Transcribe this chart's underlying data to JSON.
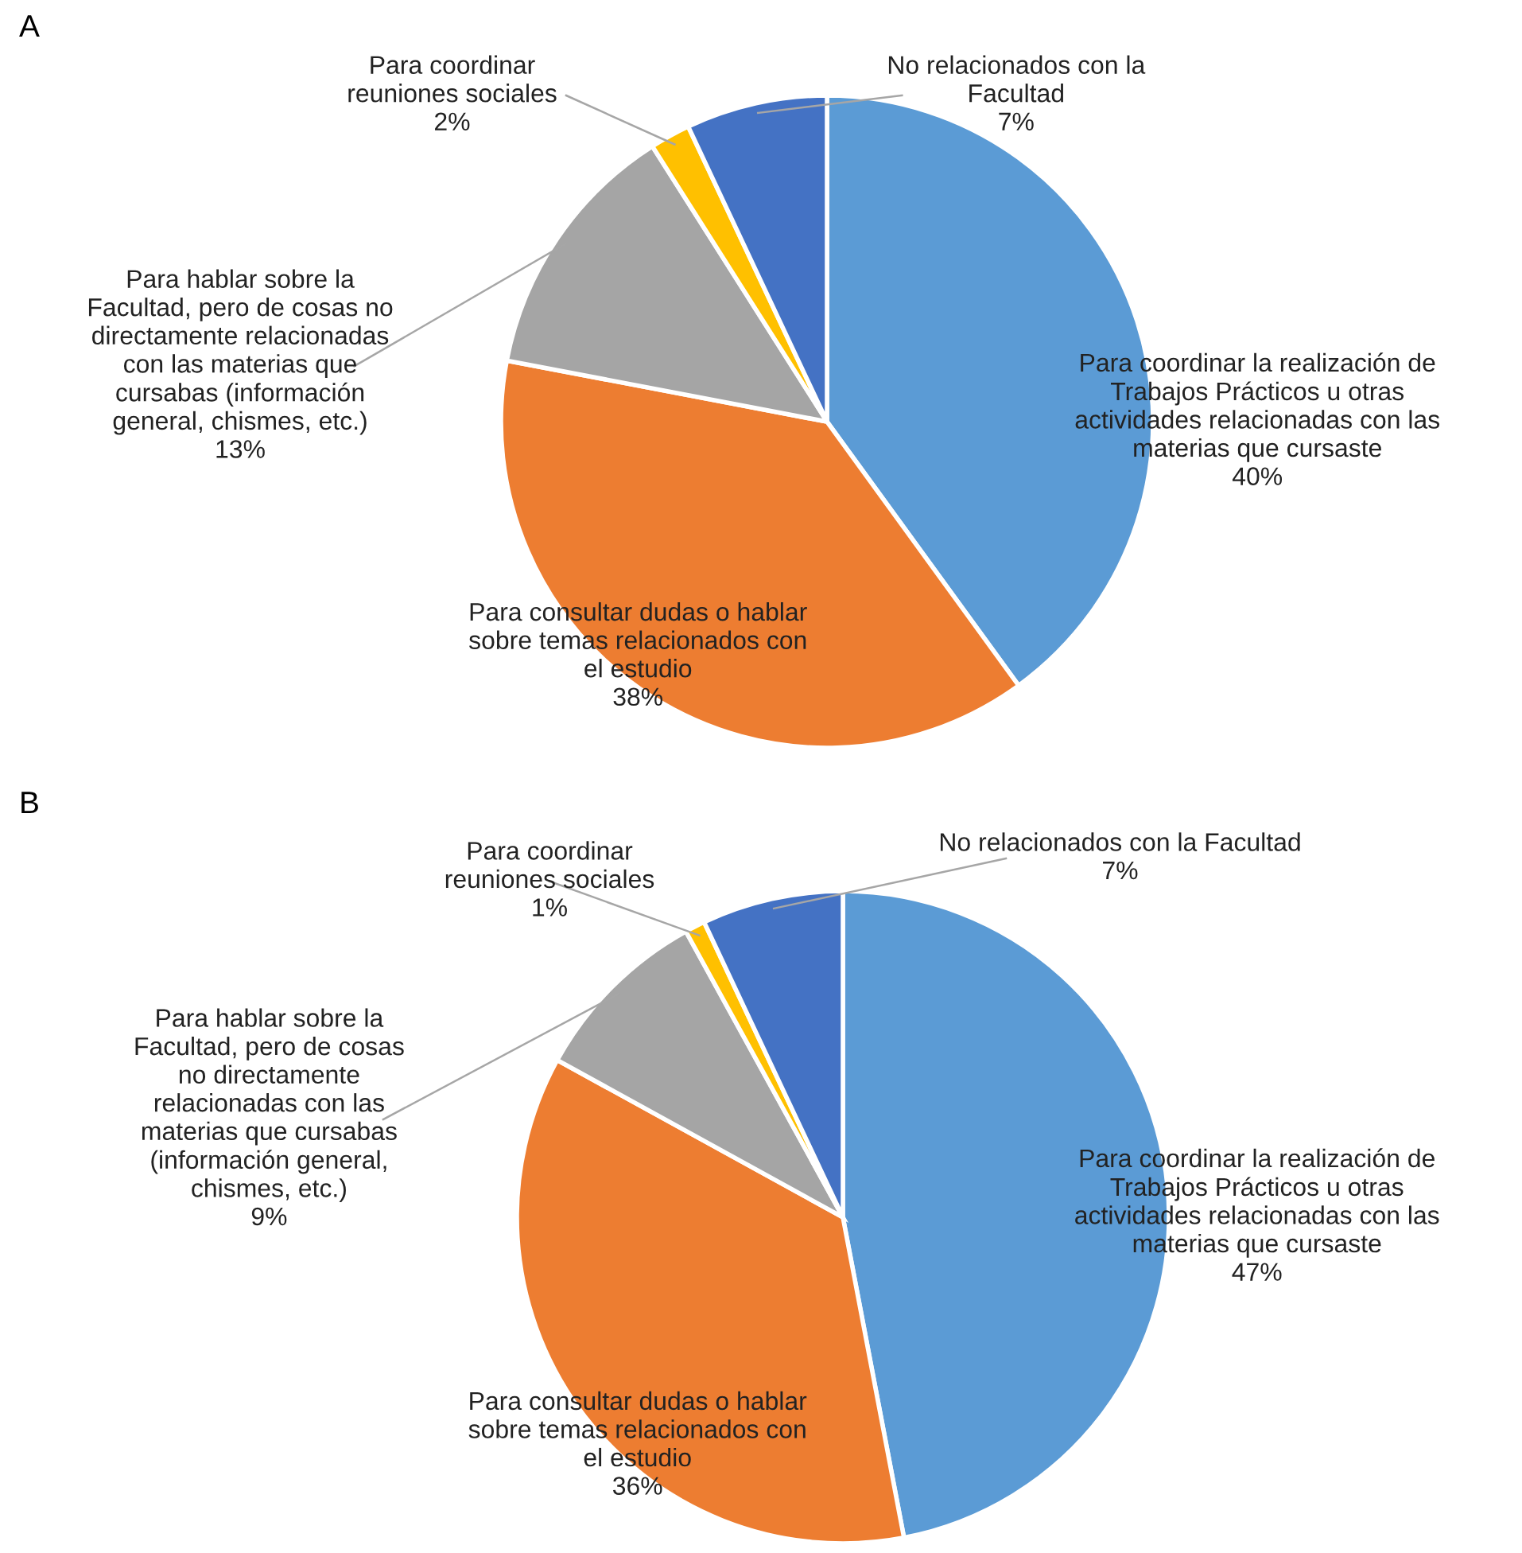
{
  "chart_data": [
    {
      "type": "pie",
      "title": "A",
      "categories": [
        "Para coordinar la realización de Trabajos Prácticos u otras actividades relacionadas con las materias que cursaste",
        "Para consultar dudas o hablar sobre temas relacionados con el estudio",
        "Para hablar sobre la Facultad, pero de cosas no directamente relacionadas con las materias que cursabas (información general, chismes, etc.)",
        "Para coordinar reuniones sociales",
        "No relacionados con la Facultad"
      ],
      "values": [
        40,
        38,
        13,
        2,
        7
      ],
      "value_labels": [
        "40%",
        "38%",
        "13%",
        "2%",
        "7%"
      ],
      "colors": [
        "#5b9bd5",
        "#ed7d31",
        "#a5a5a5",
        "#ffc000",
        "#4472c4"
      ]
    },
    {
      "type": "pie",
      "title": "B",
      "categories": [
        "Para coordinar la realización de Trabajos Prácticos u otras actividades relacionadas con las materias que cursaste",
        "Para consultar dudas o hablar sobre temas relacionados con el estudio",
        "Para hablar sobre la Facultad, pero de cosas no directamente relacionadas con las materias que cursabas (información general, chismes, etc.)",
        "Para coordinar reuniones sociales",
        "No relacionados con la Facultad"
      ],
      "values": [
        47,
        36,
        9,
        1,
        7
      ],
      "value_labels": [
        "47%",
        "36%",
        "9%",
        "1%",
        "7%"
      ],
      "colors": [
        "#5b9bd5",
        "#ed7d31",
        "#a5a5a5",
        "#ffc000",
        "#4472c4"
      ]
    }
  ]
}
